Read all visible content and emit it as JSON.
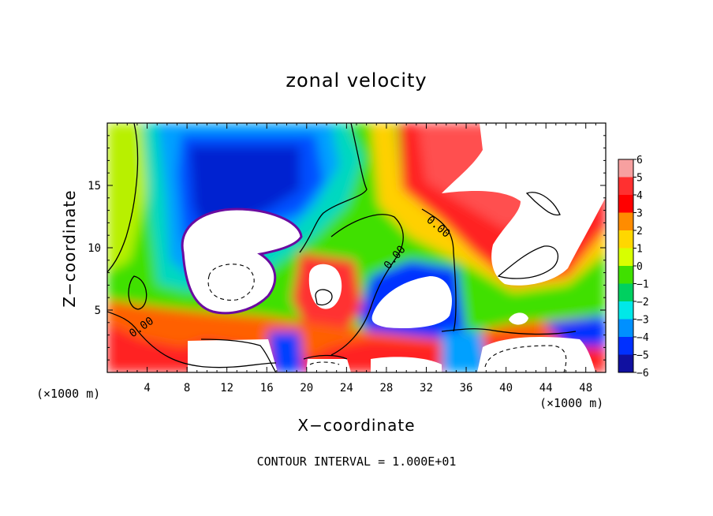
{
  "chart_data": {
    "type": "heatmap",
    "title": "zonal velocity",
    "xlabel": "X−coordinate",
    "ylabel": "Z−coordinate",
    "x_unit_label": "(×1000 m)",
    "xlim": [
      0,
      50
    ],
    "ylim": [
      0,
      20
    ],
    "x_ticks": [
      4,
      8,
      12,
      16,
      20,
      24,
      28,
      32,
      36,
      40,
      44,
      48
    ],
    "y_ticks": [
      5,
      10,
      15
    ],
    "colorbar": {
      "levels": [
        6,
        5,
        4,
        3,
        2,
        1,
        0,
        -1,
        -2,
        -3,
        -4,
        -5,
        -6
      ],
      "labels": [
        "6",
        "5",
        "4",
        "3",
        "2",
        "1",
        "0",
        "−1",
        "−2",
        "−3",
        "−4",
        "−5",
        "−6"
      ],
      "colors": [
        "#f7a0a0",
        "#ff3030",
        "#ff0000",
        "#ff8c00",
        "#ffd700",
        "#d8ff00",
        "#40e000",
        "#00d060",
        "#00e8e8",
        "#0090ff",
        "#0030ff",
        "#1010a0",
        "#6a0aa0"
      ],
      "saturated_color": "#ffffff"
    },
    "contour_labels": [
      "0.00",
      "0.00",
      "0.00"
    ],
    "footnote": "CONTOUR INTERVAL = 1.000E+01"
  }
}
